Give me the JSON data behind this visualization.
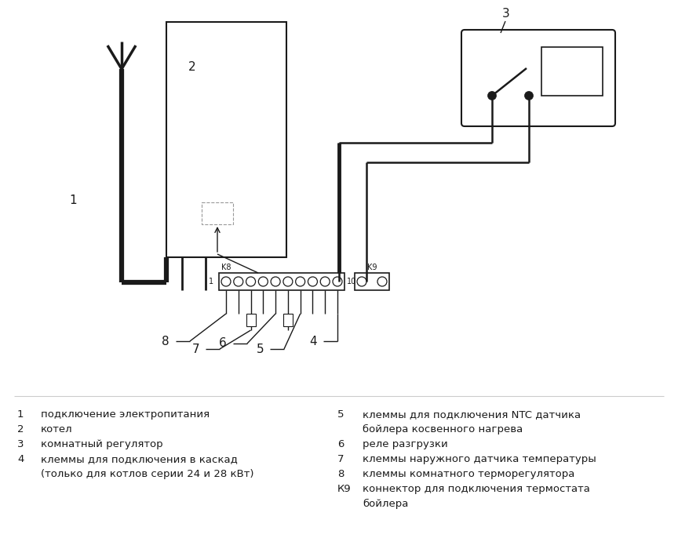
{
  "bg": "#ffffff",
  "lc": "#1a1a1a",
  "fig_w": 8.64,
  "fig_h": 7.0,
  "legend_left": [
    [
      "1",
      "подключение электропитания"
    ],
    [
      "2",
      "котел"
    ],
    [
      "3",
      "комнатный регулятор"
    ],
    [
      "4",
      "клеммы для подключения в каскад"
    ],
    [
      "",
      "(только для котлов серии 24 и 28 кВт)"
    ]
  ],
  "legend_right": [
    [
      "5",
      "клеммы для подключения NTC датчика"
    ],
    [
      "",
      "бойлера косвенного нагрева"
    ],
    [
      "6",
      "реле разгрузки"
    ],
    [
      "7",
      "клеммы наружного датчика температуры"
    ],
    [
      "8",
      "клеммы комнатного терморегулятора"
    ],
    [
      "К9",
      "коннектор для подключения термостата"
    ],
    [
      "",
      "бойлера"
    ]
  ]
}
